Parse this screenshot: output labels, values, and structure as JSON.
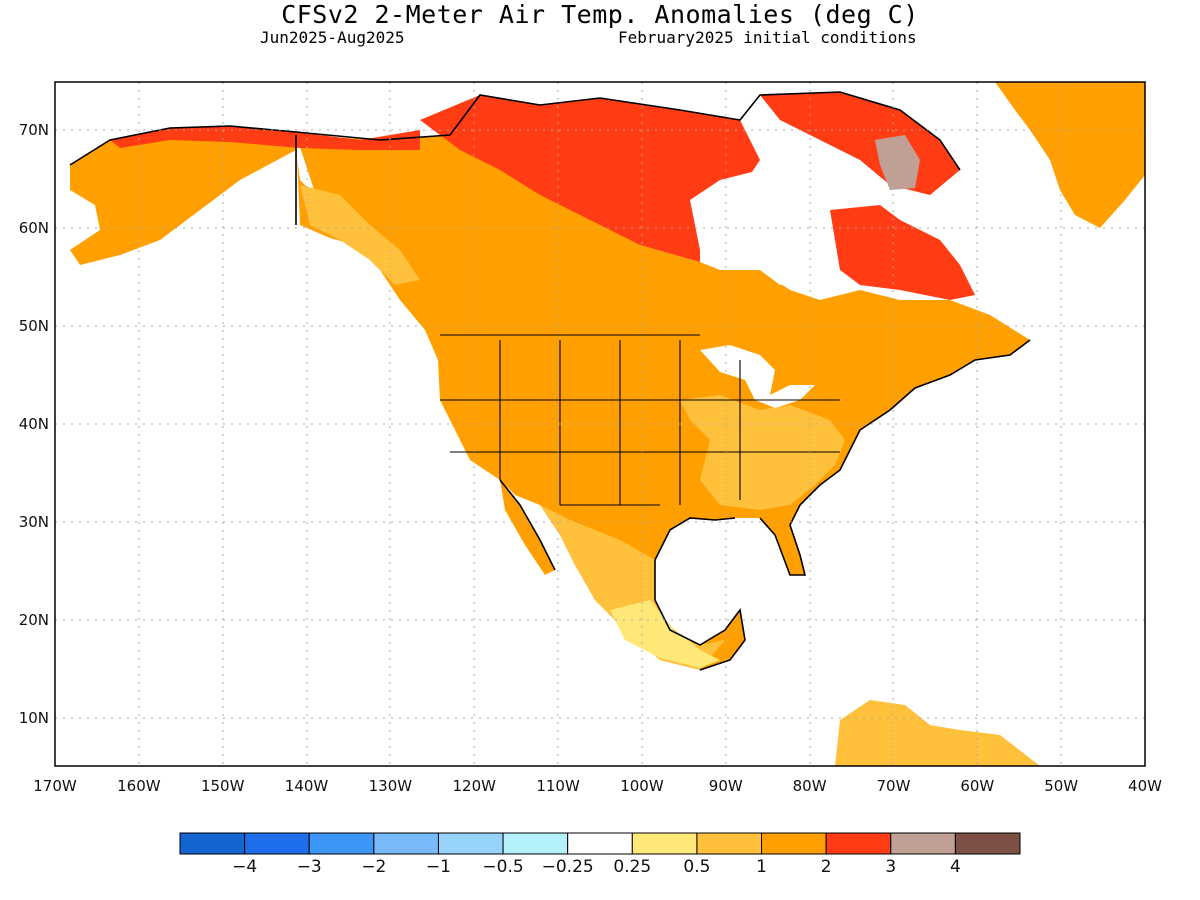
{
  "header": {
    "title": "CFSv2 2-Meter Air Temp. Anomalies (deg C)",
    "period": "Jun2025-Aug2025",
    "initial_conditions": "February2025 initial conditions"
  },
  "axes": {
    "lon_labels": [
      "170W",
      "160W",
      "150W",
      "140W",
      "130W",
      "120W",
      "110W",
      "100W",
      "90W",
      "80W",
      "70W",
      "60W",
      "50W",
      "40W"
    ],
    "lat_labels": [
      "70N",
      "60N",
      "50N",
      "40N",
      "30N",
      "20N",
      "10N"
    ]
  },
  "colorbar": {
    "colors": [
      "#1464d2",
      "#1e6eeb",
      "#3c96f5",
      "#78b9fa",
      "#96d2fa",
      "#b4f0fa",
      "#ffffff",
      "#ffe878",
      "#ffc03c",
      "#ffa000",
      "#ff3c14",
      "#c0a095",
      "#7d5046"
    ],
    "labels": [
      "−4",
      "−3",
      "−2",
      "−1",
      "−0.5",
      "−0.25",
      "0.25",
      "0.5",
      "1",
      "2",
      "3",
      "4"
    ]
  },
  "map_colors": {
    "light": "#ffe878",
    "moderate": "#ffc03c",
    "warm": "#ffa000",
    "hot": "#ff3c14",
    "very_hot": "#c0a095",
    "land_no_signal": "#ffffff",
    "coast": "#000000",
    "grid": "#aaaaaa"
  }
}
